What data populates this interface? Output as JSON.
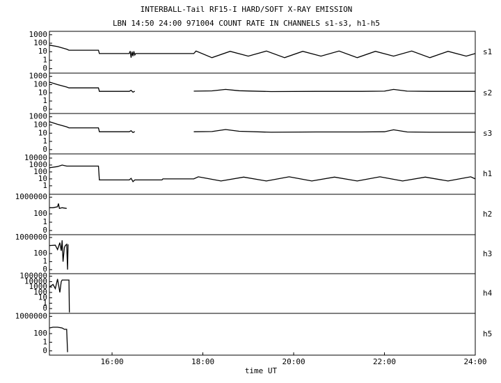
{
  "title": "INTERBALL-Tail RF15-I HARD/SOFT X-RAY EMISSION",
  "subtitle": "LBN 14:50 24:00 971004  COUNT RATE IN CHANNELS s1-s3, h1-h5",
  "chart_data": [
    {
      "type": "line",
      "label": "s1",
      "log_y": true,
      "color": "#000000",
      "xlim": [
        14.62,
        24
      ],
      "ylim": [
        0.03,
        2500
      ],
      "yticks": [
        1000,
        100,
        10,
        1,
        {
          "value": 0.1,
          "label": "0"
        }
      ],
      "x": [
        14.62,
        14.8,
        15.0,
        15.05,
        15.7,
        15.72,
        16.38,
        16.4,
        16.42,
        16.44,
        16.46,
        16.48,
        16.5,
        16.52,
        17.8,
        17.85,
        18.2,
        18.6,
        19.0,
        19.4,
        19.8,
        20.2,
        20.6,
        21.0,
        21.4,
        21.8,
        22.2,
        22.6,
        23.0,
        23.4,
        23.8,
        24.0
      ],
      "values": [
        60,
        40,
        20,
        15,
        15,
        6,
        6,
        12,
        2,
        10,
        3,
        11,
        4,
        6,
        6,
        12,
        2,
        11,
        3,
        12,
        2,
        11,
        3,
        12,
        2,
        11,
        3,
        12,
        2,
        11,
        3,
        6
      ]
    },
    {
      "type": "line",
      "label": "s2",
      "log_y": true,
      "color": "#000000",
      "xlim": [
        14.62,
        24
      ],
      "ylim": [
        0.03,
        2500
      ],
      "yticks": [
        1000,
        100,
        10,
        1,
        {
          "value": 0.1,
          "label": "0"
        }
      ],
      "x": [
        14.62,
        14.8,
        15.0,
        15.05,
        15.7,
        15.72,
        16.38,
        16.42,
        16.46,
        16.5,
        16.6,
        17.8,
        18.2,
        18.5,
        18.8,
        19.5,
        20.5,
        21.5,
        22.0,
        22.2,
        22.5,
        23.0,
        24.0
      ],
      "values": [
        200,
        100,
        50,
        40,
        40,
        15,
        15,
        20,
        12,
        16,
        null,
        16,
        17,
        26,
        18,
        14,
        15,
        15,
        16,
        26,
        16,
        15,
        15
      ]
    },
    {
      "type": "line",
      "label": "s3",
      "log_y": true,
      "color": "#000000",
      "xlim": [
        14.62,
        24
      ],
      "ylim": [
        0.03,
        2500
      ],
      "yticks": [
        1000,
        100,
        10,
        1,
        {
          "value": 0.1,
          "label": "0"
        }
      ],
      "x": [
        14.62,
        14.8,
        15.0,
        15.05,
        15.7,
        15.72,
        16.38,
        16.42,
        16.46,
        16.5,
        16.6,
        17.8,
        18.2,
        18.5,
        18.8,
        19.5,
        20.5,
        21.5,
        22.0,
        22.2,
        22.5,
        23.0,
        24.0
      ],
      "values": [
        250,
        120,
        60,
        45,
        45,
        15,
        15,
        20,
        12,
        16,
        null,
        15,
        16,
        28,
        17,
        13,
        14,
        14,
        15,
        26,
        14,
        13,
        13
      ]
    },
    {
      "type": "line",
      "label": "h1",
      "log_y": true,
      "color": "#000000",
      "xlim": [
        14.62,
        24
      ],
      "ylim": [
        0.06,
        40000
      ],
      "yticks": [
        10000,
        1000,
        100,
        10,
        1
      ],
      "x": [
        14.62,
        14.8,
        14.9,
        15.0,
        15.7,
        15.72,
        16.38,
        16.42,
        16.46,
        16.5,
        17.1,
        17.12,
        17.8,
        17.9,
        18.4,
        18.9,
        19.4,
        19.9,
        20.4,
        20.9,
        21.4,
        21.9,
        22.4,
        22.9,
        23.4,
        23.9,
        24.0
      ],
      "values": [
        400,
        600,
        1000,
        700,
        700,
        7,
        7,
        12,
        4,
        7,
        7,
        10,
        10,
        20,
        5,
        18,
        5,
        20,
        5,
        18,
        5,
        20,
        5,
        18,
        5,
        20,
        10
      ]
    },
    {
      "type": "line",
      "label": "h2",
      "log_y": true,
      "color": "#000000",
      "xlim": [
        14.62,
        24
      ],
      "ylim": [
        0.001,
        5000000
      ],
      "yticks": [
        1000000,
        100,
        1,
        {
          "value": 0.01,
          "label": "0"
        }
      ],
      "x": [
        14.62,
        14.7,
        14.8,
        14.82,
        14.84,
        14.9,
        15.0
      ],
      "values": [
        3000,
        3000,
        5000,
        30000,
        2000,
        3000,
        2000
      ]
    },
    {
      "type": "line",
      "label": "h3",
      "log_y": true,
      "color": "#000000",
      "xlim": [
        14.62,
        24
      ],
      "ylim": [
        0.001,
        5000000
      ],
      "yticks": [
        1000000,
        100,
        1,
        {
          "value": 0.01,
          "label": "0"
        }
      ],
      "x": [
        14.62,
        14.75,
        14.8,
        14.85,
        14.88,
        14.9,
        14.92,
        14.95,
        14.97,
        15.0,
        15.02,
        15.03
      ],
      "values": [
        10000,
        12000,
        1000,
        50000,
        500,
        200000,
        1,
        3000,
        10000,
        20000,
        0.01,
        20000
      ]
    },
    {
      "type": "line",
      "label": "h4",
      "log_y": true,
      "color": "#000000",
      "xlim": [
        14.62,
        24
      ],
      "ylim": [
        0.013,
        300000
      ],
      "yticks": [
        100000,
        10000,
        1000,
        100,
        10,
        1,
        {
          "value": 0.1,
          "label": "0"
        }
      ],
      "x": [
        14.62,
        14.7,
        14.75,
        14.8,
        14.85,
        14.88,
        14.9,
        15.0,
        15.05,
        15.06
      ],
      "values": [
        1000,
        3000,
        500,
        30000,
        100,
        10000,
        20000,
        20000,
        20000,
        0.02
      ]
    },
    {
      "type": "line",
      "label": "h5",
      "log_y": true,
      "color": "#000000",
      "xlim": [
        14.62,
        24
      ],
      "ylim": [
        0.001,
        5000000
      ],
      "yticks": [
        1000000,
        100,
        1,
        {
          "value": 0.01,
          "label": "0"
        }
      ],
      "xlabel": "time UT",
      "xticks": [
        {
          "value": 16,
          "label": "16:00"
        },
        {
          "value": 18,
          "label": "18:00"
        },
        {
          "value": 20,
          "label": "20:00"
        },
        {
          "value": 22,
          "label": "22:00"
        },
        {
          "value": 24,
          "label": "24:00"
        }
      ],
      "x": [
        14.62,
        14.7,
        14.8,
        14.9,
        14.95,
        15.0,
        15.02
      ],
      "values": [
        2000,
        3000,
        3000,
        2000,
        1000,
        1000,
        0.005
      ]
    }
  ]
}
